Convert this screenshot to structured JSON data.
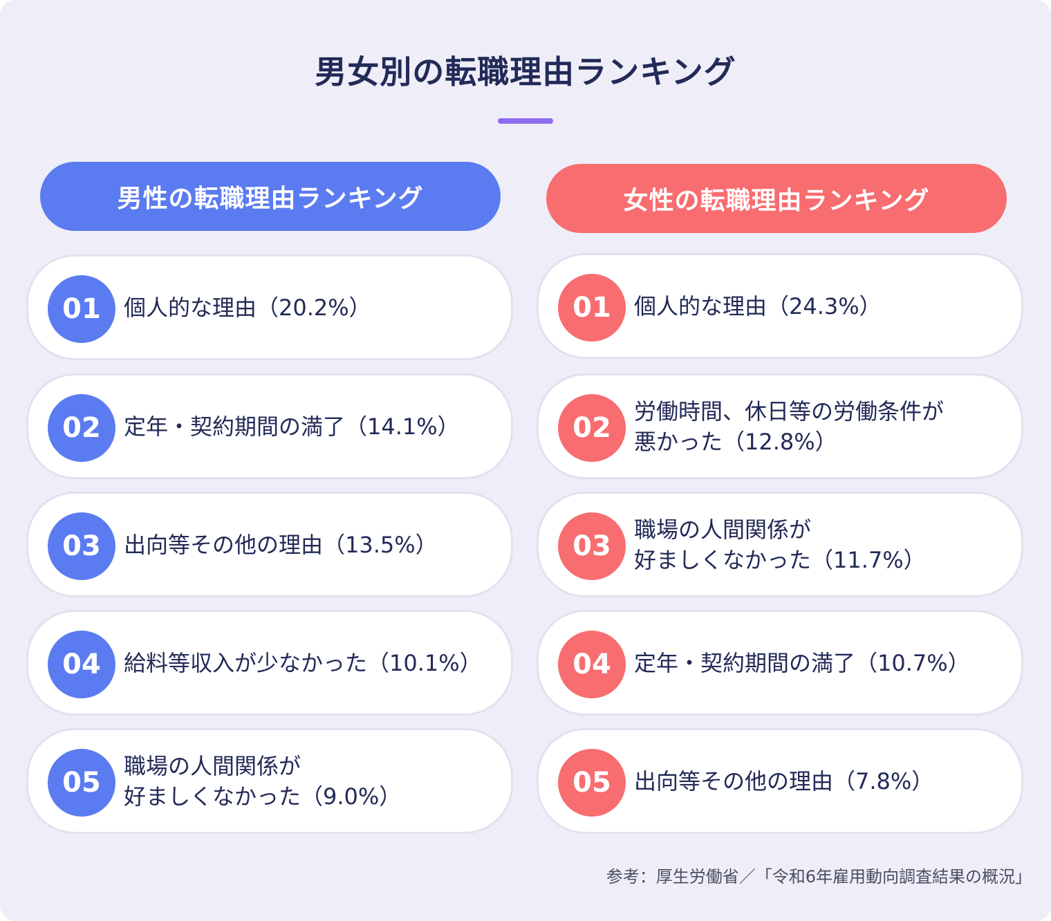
{
  "title": "男女別の転職理由ランキング",
  "accent_color": "#8e6cf0",
  "male": {
    "header": "男性の転職理由ランキング",
    "color": "#5b7bf0",
    "items": [
      {
        "rank": "01",
        "text": "個人的な理由（20.2%）"
      },
      {
        "rank": "02",
        "text": "定年・契約期間の満了（14.1%）"
      },
      {
        "rank": "03",
        "text": "出向等その他の理由（13.5%）"
      },
      {
        "rank": "04",
        "text": "給料等収入が少なかった（10.1%）"
      },
      {
        "rank": "05",
        "text": "職場の人間関係が\n好ましくなかった（9.0%）"
      }
    ]
  },
  "female": {
    "header": "女性の転職理由ランキング",
    "color": "#f76d70",
    "items": [
      {
        "rank": "01",
        "text": "個人的な理由（24.3%）"
      },
      {
        "rank": "02",
        "text": "労働時間、休日等の労働条件が\n悪かった（12.8%）"
      },
      {
        "rank": "03",
        "text": "職場の人間関係が\n好ましくなかった（11.7%）"
      },
      {
        "rank": "04",
        "text": "定年・契約期間の満了（10.7%）"
      },
      {
        "rank": "05",
        "text": "出向等その他の理由（7.8%）"
      }
    ]
  },
  "source": "参考：厚生労働省／「令和6年雇用動向調査結果の概況」"
}
